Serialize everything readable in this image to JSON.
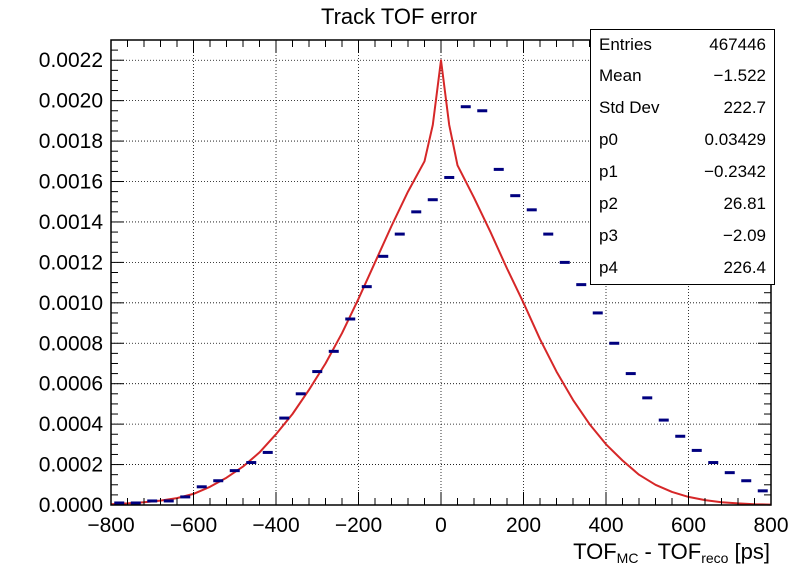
{
  "chart_data": {
    "type": "line",
    "title": "Track TOF error",
    "xlabel_parts": [
      "TOF",
      "MC",
      " - TOF",
      "reco",
      " [ps]"
    ],
    "ylabel": "",
    "xlim": [
      -800,
      800
    ],
    "ylim": [
      0,
      0.0023
    ],
    "x_ticks": [
      -800,
      -600,
      -400,
      -200,
      0,
      200,
      400,
      600,
      800
    ],
    "x_tick_labels": [
      "−800",
      "−600",
      "−400",
      "−200",
      "0",
      "200",
      "400",
      "600",
      "800"
    ],
    "y_ticks": [
      0,
      0.0002,
      0.0004,
      0.0006,
      0.0008,
      0.001,
      0.0012,
      0.0014,
      0.0016,
      0.0018,
      0.002,
      0.0022
    ],
    "y_tick_labels": [
      "0.0000",
      "0.0002",
      "0.0004",
      "0.0006",
      "0.0008",
      "0.0010",
      "0.0012",
      "0.0014",
      "0.0016",
      "0.0018",
      "0.0020",
      "0.0022"
    ],
    "grid": true,
    "series": [
      {
        "kind": "histogram",
        "color": "#00007f",
        "x": [
          -780,
          -740,
          -700,
          -660,
          -620,
          -580,
          -540,
          -500,
          -460,
          -420,
          -380,
          -340,
          -300,
          -260,
          -220,
          -180,
          -140,
          -100,
          -60,
          -20,
          20,
          60,
          100,
          140,
          180,
          220,
          260,
          300,
          340,
          380,
          420,
          460,
          500,
          540,
          580,
          620,
          660,
          700,
          740,
          780
        ],
        "y": [
          1e-05,
          1e-05,
          2e-05,
          2e-05,
          4e-05,
          9e-05,
          0.00012,
          0.00017,
          0.00021,
          0.00026,
          0.00043,
          0.00055,
          0.00066,
          0.00076,
          0.00092,
          0.00108,
          0.00123,
          0.00134,
          0.00145,
          0.00151,
          0.00162,
          0.00197,
          0.00195,
          0.00166,
          0.00153,
          0.00146,
          0.00134,
          0.0012,
          0.00109,
          0.00095,
          0.0008,
          0.00065,
          0.00053,
          0.00042,
          0.00034,
          0.00027,
          0.00021,
          0.00016,
          0.00012,
          7e-05
        ],
        "bin_width": 40
      },
      {
        "kind": "fit",
        "color": "#d62728",
        "x": [
          -800,
          -760,
          -720,
          -680,
          -640,
          -600,
          -560,
          -520,
          -480,
          -440,
          -400,
          -360,
          -320,
          -280,
          -240,
          -200,
          -160,
          -120,
          -80,
          -40,
          -20,
          0,
          20,
          40,
          80,
          120,
          160,
          200,
          240,
          280,
          320,
          360,
          400,
          440,
          480,
          520,
          560,
          600,
          640,
          680,
          720,
          760,
          800
        ],
        "y": [
          4e-06,
          8e-06,
          1.4e-05,
          2.2e-05,
          3.4e-05,
          5.5e-05,
          9e-05,
          0.000135,
          0.00019,
          0.00026,
          0.00035,
          0.00045,
          0.00057,
          0.0007,
          0.00085,
          0.00102,
          0.0012,
          0.00138,
          0.00155,
          0.0017,
          0.00188,
          0.0022,
          0.00188,
          0.00168,
          0.00152,
          0.00135,
          0.00117,
          0.001,
          0.00082,
          0.00066,
          0.00052,
          0.0004,
          0.0003,
          0.00022,
          0.00015,
          0.0001,
          6.5e-05,
          4e-05,
          2.4e-05,
          1.4e-05,
          8e-06,
          4e-06,
          2e-06
        ]
      }
    ],
    "stats": [
      {
        "label": "Entries",
        "value": "467446"
      },
      {
        "label": "Mean",
        "value": "−1.522"
      },
      {
        "label": "Std Dev",
        "value": "222.7"
      },
      {
        "label": "p0",
        "value": "0.03429"
      },
      {
        "label": "p1",
        "value": "−0.2342"
      },
      {
        "label": "p2",
        "value": "26.81"
      },
      {
        "label": "p3",
        "value": "−2.09"
      },
      {
        "label": "p4",
        "value": "226.4"
      }
    ]
  }
}
